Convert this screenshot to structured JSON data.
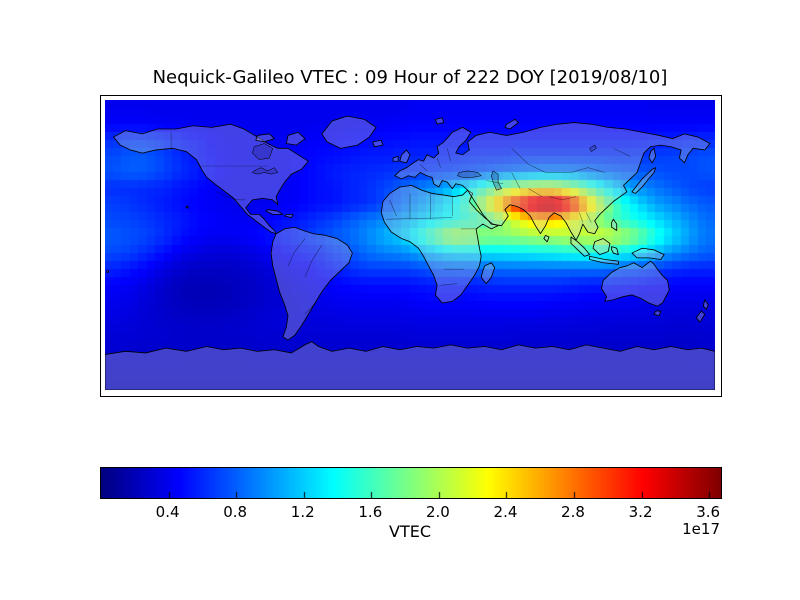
{
  "title": "Nequick-Galileo VTEC : 09 Hour of 222 DOY [2019/08/10]",
  "colorbar": {
    "label": "VTEC",
    "exponent": "1e17",
    "ticks": [
      "0.4",
      "0.8",
      "1.2",
      "1.6",
      "2.0",
      "2.4",
      "2.8",
      "3.2",
      "3.6"
    ],
    "tick_values": [
      0.4,
      0.8,
      1.2,
      1.6,
      2.0,
      2.4,
      2.8,
      3.2,
      3.6
    ],
    "vmin": 0.0,
    "vmax": 3.67
  },
  "colors": {
    "background": "#ffffff",
    "frame": "#000000",
    "text": "#000000",
    "coastline": "#000000",
    "land_fill": "rgba(202,202,214,0.32)",
    "colormap": "jet",
    "colormap_min_color": "#000080",
    "colormap_max_color": "#800000"
  },
  "chart_data": {
    "type": "heatmap",
    "title": "Nequick-Galileo VTEC : 09 Hour of 222 DOY [2019/08/10]",
    "projection": "equirectangular world map",
    "xlabel": "",
    "ylabel": "",
    "colorbar_label": "VTEC",
    "value_scale": "1e17",
    "colormap": "jet",
    "vmin": 0.0,
    "vmax": 3.67,
    "lon_range": [
      -180,
      180
    ],
    "lat_range": [
      -90,
      90
    ],
    "lon_col_centers": [
      -175,
      -165,
      -155,
      -145,
      -135,
      -125,
      -115,
      -105,
      -95,
      -85,
      -75,
      -65,
      -55,
      -45,
      -35,
      -25,
      -15,
      -5,
      5,
      15,
      25,
      35,
      45,
      55,
      65,
      75,
      85,
      95,
      105,
      115,
      125,
      135,
      145,
      155,
      165,
      175
    ],
    "lat_row_centers": [
      85,
      75,
      65,
      55,
      45,
      35,
      25,
      15,
      5,
      -5,
      -15,
      -25,
      -35,
      -45,
      -55,
      -65,
      -75,
      -85
    ],
    "values": [
      [
        0.4,
        0.4,
        0.4,
        0.4,
        0.4,
        0.4,
        0.4,
        0.4,
        0.4,
        0.4,
        0.4,
        0.4,
        0.4,
        0.4,
        0.4,
        0.4,
        0.4,
        0.4,
        0.42,
        0.42,
        0.42,
        0.42,
        0.42,
        0.42,
        0.42,
        0.42,
        0.42,
        0.42,
        0.42,
        0.42,
        0.42,
        0.42,
        0.4,
        0.4,
        0.4,
        0.4
      ],
      [
        0.45,
        0.45,
        0.44,
        0.42,
        0.42,
        0.4,
        0.4,
        0.4,
        0.4,
        0.4,
        0.4,
        0.4,
        0.4,
        0.4,
        0.42,
        0.42,
        0.42,
        0.44,
        0.45,
        0.45,
        0.45,
        0.45,
        0.45,
        0.45,
        0.45,
        0.45,
        0.45,
        0.45,
        0.45,
        0.45,
        0.45,
        0.45,
        0.45,
        0.45,
        0.45,
        0.45
      ],
      [
        0.62,
        0.68,
        0.68,
        0.62,
        0.55,
        0.5,
        0.45,
        0.42,
        0.42,
        0.42,
        0.42,
        0.42,
        0.45,
        0.45,
        0.48,
        0.48,
        0.5,
        0.5,
        0.52,
        0.52,
        0.52,
        0.52,
        0.52,
        0.52,
        0.52,
        0.52,
        0.52,
        0.52,
        0.52,
        0.52,
        0.52,
        0.52,
        0.55,
        0.55,
        0.58,
        0.6
      ],
      [
        0.72,
        0.78,
        0.78,
        0.7,
        0.6,
        0.52,
        0.45,
        0.42,
        0.42,
        0.42,
        0.42,
        0.45,
        0.48,
        0.5,
        0.52,
        0.55,
        0.55,
        0.58,
        0.58,
        0.58,
        0.58,
        0.6,
        0.62,
        0.62,
        0.65,
        0.65,
        0.65,
        0.65,
        0.65,
        0.65,
        0.65,
        0.65,
        0.68,
        0.7,
        0.72,
        0.75
      ],
      [
        0.75,
        0.8,
        0.78,
        0.7,
        0.62,
        0.55,
        0.48,
        0.42,
        0.4,
        0.4,
        0.42,
        0.45,
        0.5,
        0.55,
        0.58,
        0.6,
        0.62,
        0.65,
        0.65,
        0.68,
        0.7,
        0.75,
        0.8,
        0.85,
        0.9,
        0.95,
        0.95,
        0.95,
        0.9,
        0.85,
        0.8,
        0.78,
        0.75,
        0.72,
        0.72,
        0.75
      ],
      [
        0.62,
        0.62,
        0.6,
        0.58,
        0.52,
        0.48,
        0.42,
        0.4,
        0.4,
        0.4,
        0.42,
        0.45,
        0.5,
        0.52,
        0.58,
        0.62,
        0.7,
        0.8,
        0.9,
        1.0,
        1.15,
        1.35,
        1.6,
        1.9,
        2.1,
        2.2,
        2.2,
        2.0,
        1.7,
        1.4,
        1.15,
        0.98,
        0.88,
        0.8,
        0.72,
        0.68
      ],
      [
        0.68,
        0.65,
        0.6,
        0.55,
        0.5,
        0.45,
        0.42,
        0.4,
        0.4,
        0.4,
        0.42,
        0.45,
        0.5,
        0.52,
        0.58,
        0.62,
        0.72,
        0.85,
        1.0,
        1.15,
        1.35,
        1.65,
        2.15,
        2.75,
        3.25,
        3.6,
        3.65,
        3.3,
        2.6,
        1.95,
        1.5,
        1.25,
        1.05,
        0.95,
        0.85,
        0.78
      ],
      [
        0.72,
        0.7,
        0.66,
        0.6,
        0.55,
        0.48,
        0.45,
        0.42,
        0.42,
        0.45,
        0.5,
        0.55,
        0.62,
        0.68,
        0.78,
        0.88,
        0.95,
        1.05,
        1.2,
        1.32,
        1.42,
        1.52,
        1.62,
        1.9,
        2.25,
        2.45,
        2.45,
        2.25,
        2.0,
        1.75,
        1.55,
        1.42,
        1.28,
        1.12,
        0.98,
        0.85
      ],
      [
        0.78,
        0.75,
        0.7,
        0.62,
        0.52,
        0.45,
        0.42,
        0.42,
        0.45,
        0.5,
        0.55,
        0.62,
        0.7,
        0.78,
        0.85,
        0.95,
        1.1,
        1.2,
        1.45,
        1.75,
        2.05,
        2.0,
        1.9,
        1.88,
        1.92,
        1.98,
        2.0,
        2.05,
        2.1,
        2.15,
        2.0,
        1.8,
        1.5,
        1.25,
        1.05,
        0.88
      ],
      [
        0.72,
        0.68,
        0.6,
        0.5,
        0.4,
        0.35,
        0.32,
        0.32,
        0.35,
        0.4,
        0.45,
        0.52,
        0.55,
        0.65,
        0.75,
        0.85,
        0.92,
        0.95,
        1.05,
        1.15,
        1.25,
        1.28,
        1.28,
        1.3,
        1.32,
        1.35,
        1.38,
        1.42,
        1.45,
        1.45,
        1.38,
        1.28,
        1.12,
        0.98,
        0.88,
        0.8
      ],
      [
        0.58,
        0.52,
        0.45,
        0.35,
        0.28,
        0.25,
        0.25,
        0.25,
        0.28,
        0.32,
        0.38,
        0.42,
        0.48,
        0.55,
        0.62,
        0.68,
        0.68,
        0.68,
        0.72,
        0.78,
        0.8,
        0.8,
        0.82,
        0.85,
        0.85,
        0.85,
        0.85,
        0.85,
        0.85,
        0.85,
        0.8,
        0.75,
        0.68,
        0.62,
        0.58,
        0.58
      ],
      [
        0.45,
        0.42,
        0.36,
        0.28,
        0.22,
        0.2,
        0.2,
        0.22,
        0.25,
        0.28,
        0.32,
        0.38,
        0.42,
        0.45,
        0.48,
        0.5,
        0.5,
        0.5,
        0.52,
        0.55,
        0.55,
        0.55,
        0.58,
        0.6,
        0.6,
        0.6,
        0.6,
        0.58,
        0.55,
        0.55,
        0.52,
        0.5,
        0.48,
        0.45,
        0.45,
        0.45
      ],
      [
        0.4,
        0.38,
        0.32,
        0.26,
        0.22,
        0.2,
        0.2,
        0.22,
        0.25,
        0.28,
        0.3,
        0.34,
        0.38,
        0.4,
        0.42,
        0.42,
        0.42,
        0.42,
        0.45,
        0.46,
        0.46,
        0.46,
        0.48,
        0.48,
        0.48,
        0.48,
        0.46,
        0.45,
        0.44,
        0.42,
        0.42,
        0.4,
        0.38,
        0.38,
        0.38,
        0.38
      ],
      [
        0.36,
        0.34,
        0.3,
        0.28,
        0.26,
        0.25,
        0.25,
        0.26,
        0.28,
        0.3,
        0.32,
        0.33,
        0.34,
        0.35,
        0.36,
        0.36,
        0.36,
        0.37,
        0.38,
        0.38,
        0.38,
        0.38,
        0.38,
        0.38,
        0.38,
        0.38,
        0.37,
        0.36,
        0.36,
        0.35,
        0.34,
        0.34,
        0.33,
        0.32,
        0.32,
        0.33
      ],
      [
        0.32,
        0.31,
        0.3,
        0.29,
        0.28,
        0.28,
        0.28,
        0.28,
        0.29,
        0.3,
        0.3,
        0.31,
        0.31,
        0.32,
        0.32,
        0.32,
        0.32,
        0.32,
        0.33,
        0.33,
        0.33,
        0.33,
        0.33,
        0.33,
        0.32,
        0.32,
        0.32,
        0.31,
        0.31,
        0.3,
        0.3,
        0.3,
        0.3,
        0.29,
        0.29,
        0.3
      ],
      [
        0.3,
        0.29,
        0.28,
        0.28,
        0.27,
        0.27,
        0.27,
        0.27,
        0.27,
        0.28,
        0.28,
        0.28,
        0.28,
        0.29,
        0.29,
        0.29,
        0.29,
        0.29,
        0.29,
        0.29,
        0.29,
        0.29,
        0.29,
        0.29,
        0.29,
        0.28,
        0.28,
        0.28,
        0.28,
        0.27,
        0.27,
        0.27,
        0.27,
        0.27,
        0.27,
        0.28
      ],
      [
        0.26,
        0.26,
        0.26,
        0.26,
        0.26,
        0.26,
        0.26,
        0.26,
        0.26,
        0.26,
        0.26,
        0.26,
        0.26,
        0.26,
        0.26,
        0.26,
        0.26,
        0.26,
        0.26,
        0.26,
        0.26,
        0.26,
        0.26,
        0.26,
        0.26,
        0.26,
        0.26,
        0.26,
        0.26,
        0.26,
        0.26,
        0.26,
        0.26,
        0.26,
        0.26,
        0.26
      ],
      [
        0.24,
        0.24,
        0.24,
        0.24,
        0.24,
        0.24,
        0.24,
        0.24,
        0.24,
        0.24,
        0.24,
        0.24,
        0.24,
        0.24,
        0.24,
        0.24,
        0.24,
        0.24,
        0.24,
        0.24,
        0.24,
        0.24,
        0.24,
        0.24,
        0.24,
        0.24,
        0.24,
        0.24,
        0.24,
        0.24,
        0.24,
        0.24,
        0.24,
        0.24,
        0.24,
        0.24
      ]
    ]
  }
}
